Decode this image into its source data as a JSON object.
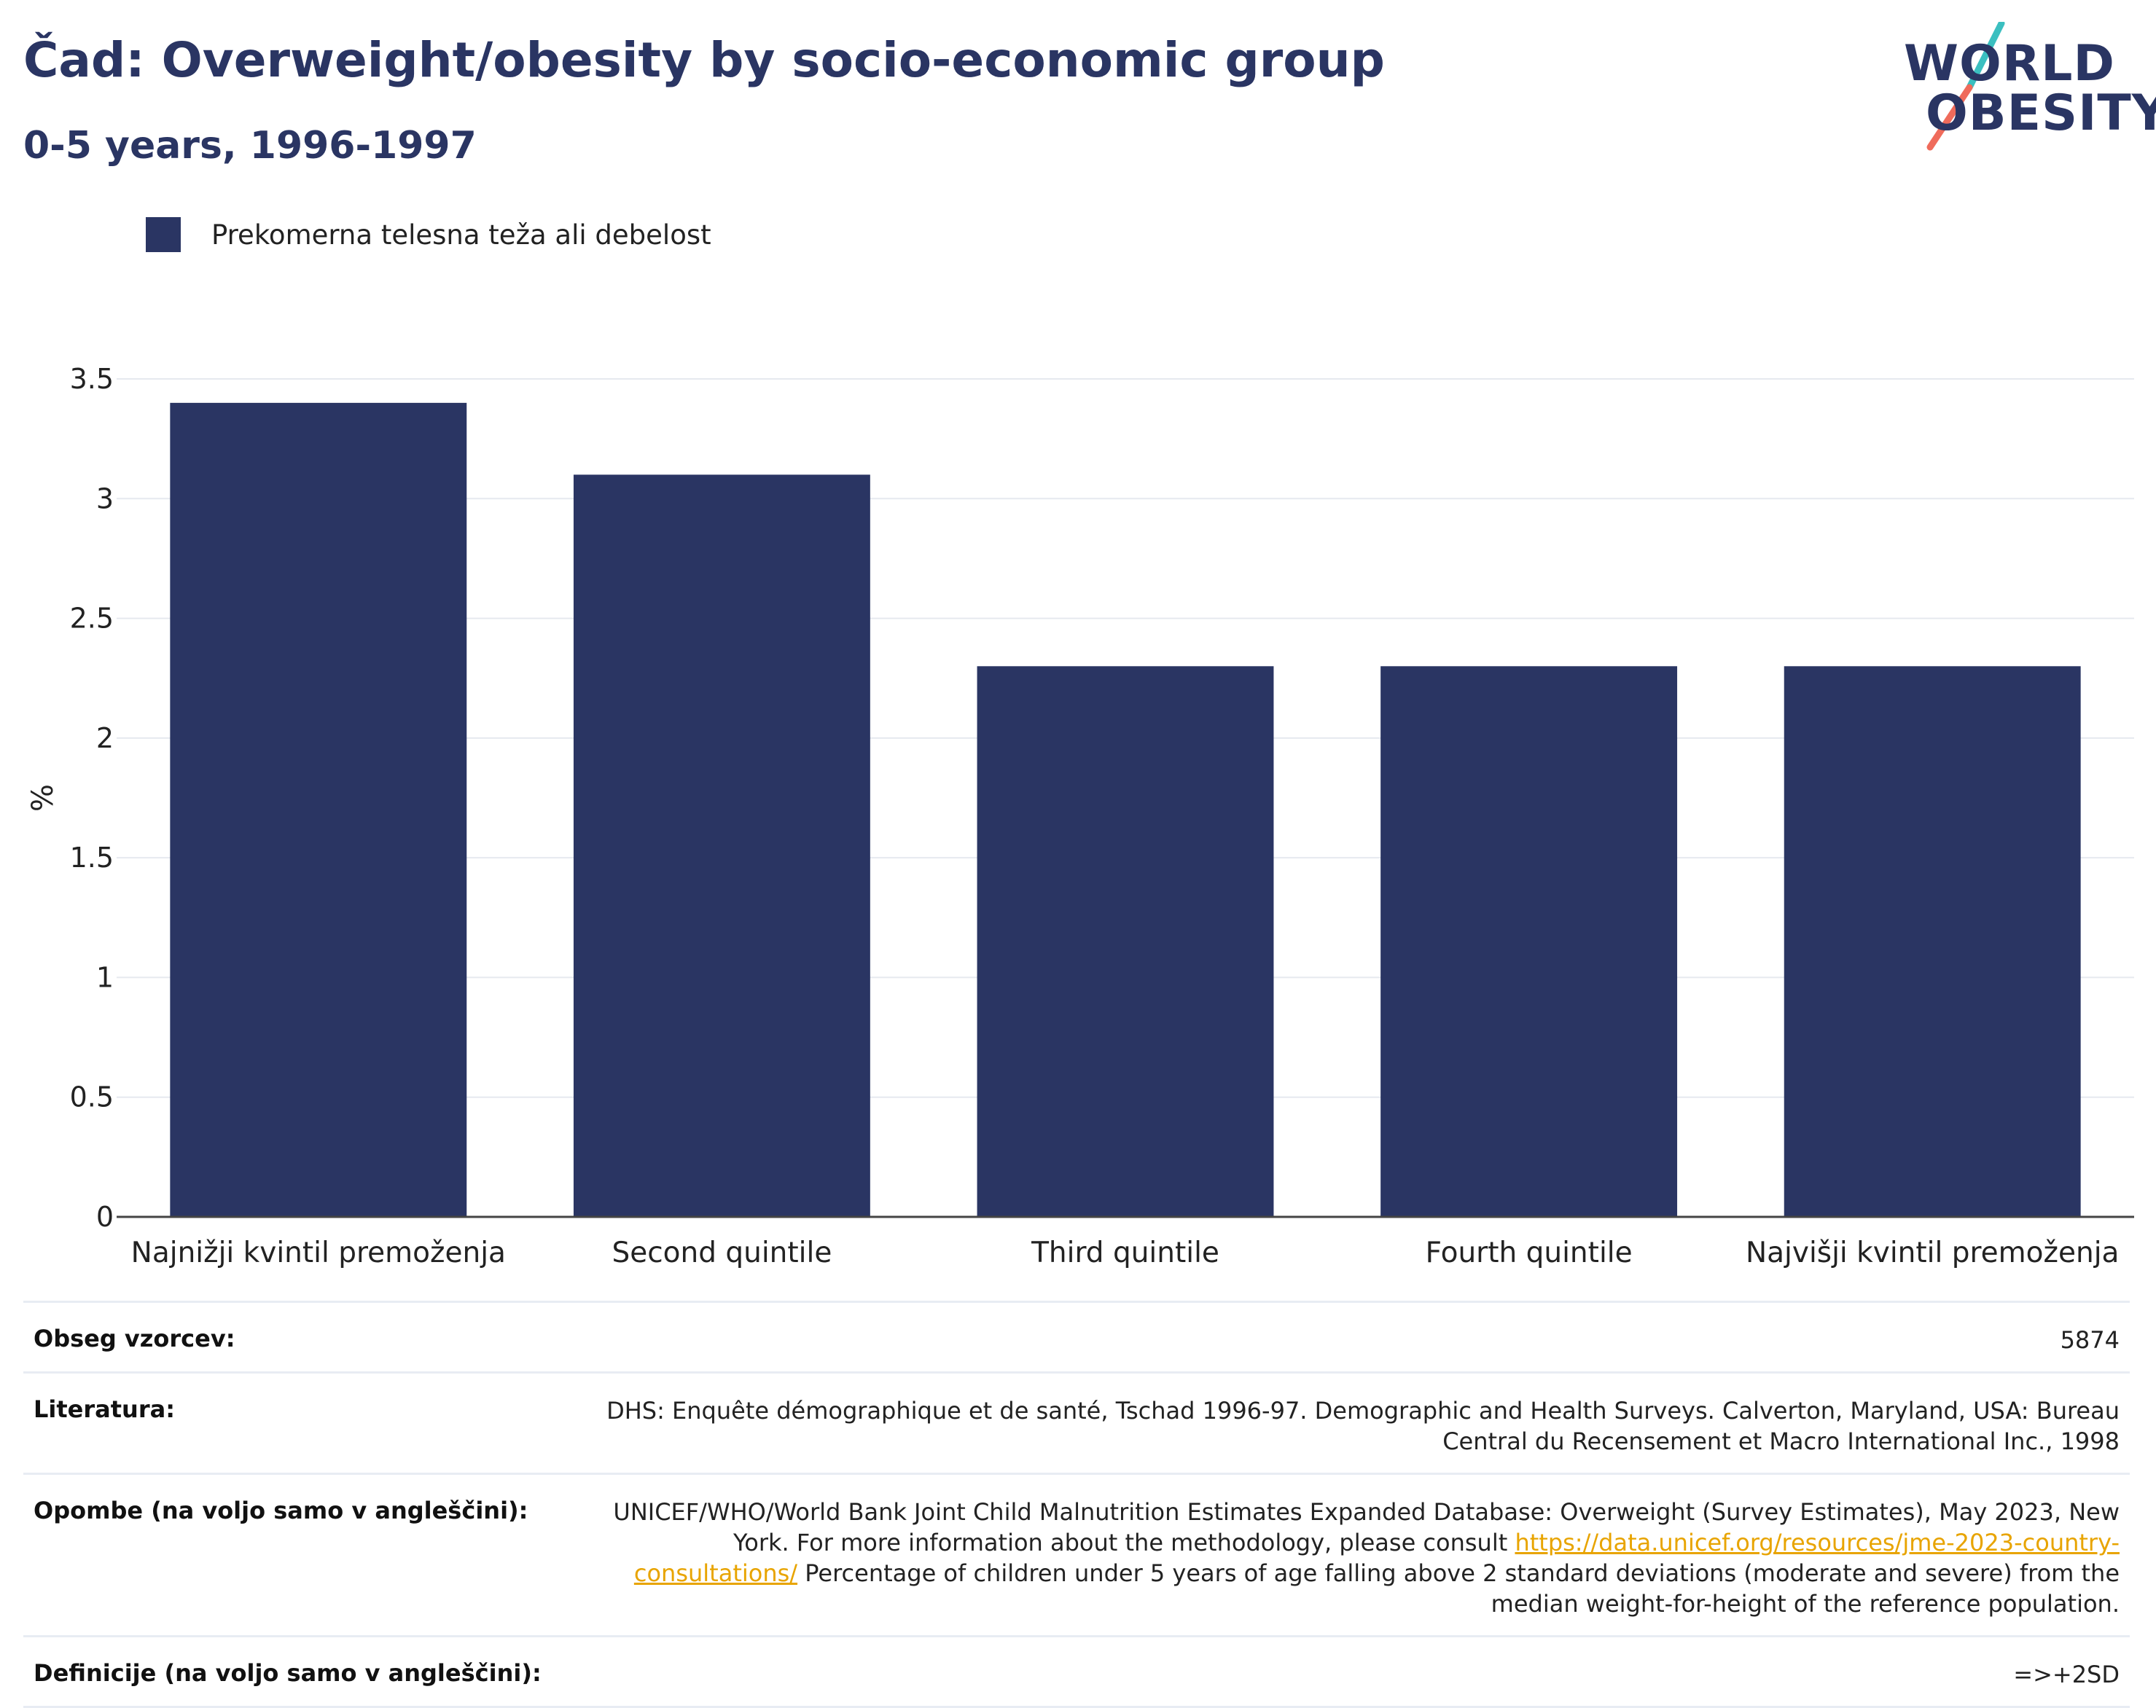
{
  "header": {
    "title": "Čad: Overweight/obesity by socio-economic group",
    "subtitle": "0-5 years, 1996-1997"
  },
  "logo": {
    "line1": "WORLD",
    "line2": "OBESITY",
    "colors": {
      "text": "#2a3563",
      "slash_top": "#3bbfc0",
      "slash_bottom": "#ef6b5b"
    }
  },
  "legend": {
    "items": [
      {
        "label": "Prekomerna telesna teža ali debelost",
        "color": "#2a3563"
      }
    ]
  },
  "chart_data": {
    "type": "bar",
    "categories": [
      "Najnižji kvintil premoženja",
      "Second quintile",
      "Third quintile",
      "Fourth quintile",
      "Najvišji kvintil premoženja"
    ],
    "series": [
      {
        "name": "Prekomerna telesna teža ali debelost",
        "values": [
          3.4,
          3.1,
          2.3,
          2.3,
          2.3
        ],
        "color": "#2a3563"
      }
    ],
    "ylabel": "%",
    "xlabel": "",
    "ylim": [
      0,
      3.5
    ],
    "yticks": [
      0,
      0.5,
      1,
      1.5,
      2,
      2.5,
      3,
      3.5
    ],
    "ytick_labels": [
      "0",
      "0.5",
      "1",
      "1.5",
      "2",
      "2.5",
      "3",
      "3.5"
    ],
    "grid": true,
    "legend_position": "top-left"
  },
  "meta": {
    "sample_size": {
      "label": "Obseg vzorcev:",
      "value": "5874"
    },
    "literature": {
      "label": "Literatura:",
      "value": "DHS: Enquête démographique et de santé, Tschad 1996-97. Demographic and Health Surveys. Calverton, Maryland, USA: Bureau Central du Recensement et Macro International Inc., 1998"
    },
    "notes": {
      "label": "Opombe (na voljo samo v angleščini):",
      "text_before": "UNICEF/WHO/World Bank Joint Child Malnutrition Estimates Expanded Database: Overweight (Survey Estimates), May 2023, New York. For more information about the methodology, please consult ",
      "link": "https://data.unicef.org/resources/jme-2023-country-consultations/",
      "text_after": " Percentage of children under 5 years of age falling above 2 standard deviations (moderate and severe) from the median weight-for-height of the reference population."
    },
    "definitions": {
      "label": "Definicije (na voljo samo v angleščini):",
      "value": "=>+2SD"
    }
  }
}
